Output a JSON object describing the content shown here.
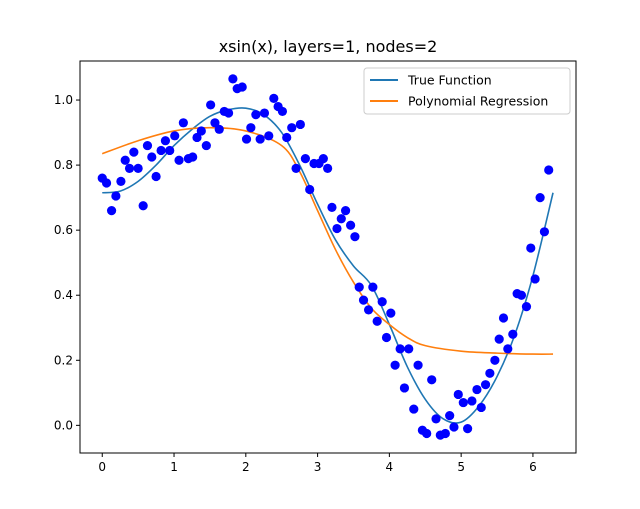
{
  "chart_data": {
    "type": "scatter",
    "title": "xsin(x), layers=1, nodes=2",
    "xlabel": "",
    "ylabel": "",
    "xlim": [
      -0.31,
      6.6
    ],
    "ylim": [
      -0.085,
      1.12
    ],
    "xticks": [
      "0",
      "1",
      "2",
      "3",
      "4",
      "5",
      "6"
    ],
    "yticks": [
      "0.0",
      "0.2",
      "0.4",
      "0.6",
      "0.8",
      "1.0"
    ],
    "legend_position": "top-right",
    "grid": false,
    "colors": {
      "true_function": "#1f77b4",
      "regression": "#ff7f0e",
      "points": "#0000ff"
    },
    "series": [
      {
        "name": "True Function",
        "style": "line",
        "x": [
          0,
          0.25,
          0.5,
          0.75,
          1.0,
          1.25,
          1.5,
          1.75,
          2.0,
          2.25,
          2.5,
          2.75,
          3.0,
          3.25,
          3.5,
          3.75,
          4.0,
          4.25,
          4.5,
          4.75,
          5.0,
          5.25,
          5.5,
          5.75,
          6.0,
          6.28
        ],
        "y": [
          0.715,
          0.72,
          0.75,
          0.8,
          0.86,
          0.91,
          0.95,
          0.97,
          0.975,
          0.955,
          0.9,
          0.8,
          0.68,
          0.57,
          0.49,
          0.43,
          0.31,
          0.18,
          0.08,
          0.02,
          0.01,
          0.06,
          0.15,
          0.28,
          0.46,
          0.715
        ]
      },
      {
        "name": "Polynomial Regression",
        "style": "line",
        "x": [
          0,
          0.5,
          1.0,
          1.5,
          2.0,
          2.5,
          2.75,
          3.0,
          3.25,
          3.5,
          3.75,
          4.0,
          4.25,
          4.5,
          5.0,
          5.5,
          6.0,
          6.28
        ],
        "y": [
          0.835,
          0.875,
          0.905,
          0.915,
          0.905,
          0.86,
          0.78,
          0.66,
          0.54,
          0.44,
          0.36,
          0.31,
          0.27,
          0.245,
          0.228,
          0.222,
          0.219,
          0.219
        ]
      },
      {
        "name": "",
        "style": "scatter",
        "points": [
          [
            0.0,
            0.76
          ],
          [
            0.06,
            0.745
          ],
          [
            0.13,
            0.66
          ],
          [
            0.19,
            0.705
          ],
          [
            0.26,
            0.75
          ],
          [
            0.32,
            0.815
          ],
          [
            0.38,
            0.79
          ],
          [
            0.44,
            0.84
          ],
          [
            0.5,
            0.79
          ],
          [
            0.57,
            0.675
          ],
          [
            0.63,
            0.86
          ],
          [
            0.69,
            0.825
          ],
          [
            0.75,
            0.765
          ],
          [
            0.82,
            0.845
          ],
          [
            0.88,
            0.875
          ],
          [
            0.94,
            0.845
          ],
          [
            1.01,
            0.89
          ],
          [
            1.07,
            0.815
          ],
          [
            1.13,
            0.93
          ],
          [
            1.2,
            0.82
          ],
          [
            1.26,
            0.825
          ],
          [
            1.32,
            0.885
          ],
          [
            1.38,
            0.905
          ],
          [
            1.45,
            0.86
          ],
          [
            1.51,
            0.985
          ],
          [
            1.57,
            0.93
          ],
          [
            1.63,
            0.91
          ],
          [
            1.7,
            0.965
          ],
          [
            1.76,
            0.96
          ],
          [
            1.82,
            1.065
          ],
          [
            1.88,
            1.035
          ],
          [
            1.95,
            1.04
          ],
          [
            2.01,
            0.88
          ],
          [
            2.07,
            0.915
          ],
          [
            2.14,
            0.955
          ],
          [
            2.2,
            0.88
          ],
          [
            2.26,
            0.96
          ],
          [
            2.32,
            0.89
          ],
          [
            2.39,
            1.005
          ],
          [
            2.45,
            0.98
          ],
          [
            2.51,
            0.965
          ],
          [
            2.57,
            0.885
          ],
          [
            2.64,
            0.915
          ],
          [
            2.7,
            0.79
          ],
          [
            2.76,
            0.925
          ],
          [
            2.83,
            0.82
          ],
          [
            2.89,
            0.725
          ],
          [
            2.95,
            0.805
          ],
          [
            3.02,
            0.805
          ],
          [
            3.08,
            0.82
          ],
          [
            3.14,
            0.79
          ],
          [
            3.2,
            0.67
          ],
          [
            3.27,
            0.605
          ],
          [
            3.33,
            0.635
          ],
          [
            3.39,
            0.66
          ],
          [
            3.46,
            0.615
          ],
          [
            3.52,
            0.58
          ],
          [
            3.58,
            0.425
          ],
          [
            3.64,
            0.385
          ],
          [
            3.71,
            0.355
          ],
          [
            3.77,
            0.425
          ],
          [
            3.83,
            0.32
          ],
          [
            3.9,
            0.38
          ],
          [
            3.96,
            0.27
          ],
          [
            4.02,
            0.345
          ],
          [
            4.08,
            0.185
          ],
          [
            4.15,
            0.235
          ],
          [
            4.21,
            0.115
          ],
          [
            4.27,
            0.235
          ],
          [
            4.34,
            0.05
          ],
          [
            4.4,
            0.185
          ],
          [
            4.46,
            -0.015
          ],
          [
            4.52,
            -0.025
          ],
          [
            4.59,
            0.14
          ],
          [
            4.65,
            0.02
          ],
          [
            4.71,
            -0.03
          ],
          [
            4.78,
            -0.025
          ],
          [
            4.84,
            0.03
          ],
          [
            4.9,
            -0.005
          ],
          [
            4.96,
            0.095
          ],
          [
            5.03,
            0.07
          ],
          [
            5.09,
            -0.01
          ],
          [
            5.15,
            0.075
          ],
          [
            5.22,
            0.11
          ],
          [
            5.28,
            0.055
          ],
          [
            5.34,
            0.125
          ],
          [
            5.4,
            0.16
          ],
          [
            5.47,
            0.2
          ],
          [
            5.53,
            0.265
          ],
          [
            5.59,
            0.33
          ],
          [
            5.65,
            0.235
          ],
          [
            5.72,
            0.28
          ],
          [
            5.78,
            0.405
          ],
          [
            5.84,
            0.4
          ],
          [
            5.91,
            0.365
          ],
          [
            5.97,
            0.545
          ],
          [
            6.03,
            0.45
          ],
          [
            6.1,
            0.7
          ],
          [
            6.16,
            0.595
          ],
          [
            6.22,
            0.785
          ]
        ]
      }
    ]
  }
}
